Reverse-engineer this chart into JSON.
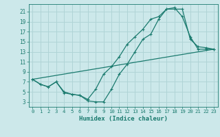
{
  "xlabel": "Humidex (Indice chaleur)",
  "bg_color": "#cce8ea",
  "grid_color": "#b0d4d6",
  "line_color": "#1a7a6e",
  "xlim": [
    -0.5,
    23.5
  ],
  "ylim": [
    2.0,
    22.5
  ],
  "xticks": [
    0,
    1,
    2,
    3,
    4,
    5,
    6,
    7,
    8,
    9,
    10,
    11,
    12,
    13,
    14,
    15,
    16,
    17,
    18,
    19,
    20,
    21,
    22,
    23
  ],
  "yticks": [
    3,
    5,
    7,
    9,
    11,
    13,
    15,
    17,
    19,
    21
  ],
  "line1_x": [
    0,
    1,
    2,
    3,
    4,
    5,
    6,
    7,
    8,
    9,
    10,
    11,
    12,
    13,
    14,
    15,
    16,
    17,
    18,
    19,
    20,
    21,
    22,
    23
  ],
  "line1_y": [
    7.5,
    6.5,
    6.0,
    7.0,
    4.8,
    4.5,
    4.3,
    3.2,
    3.0,
    3.0,
    5.5,
    8.5,
    10.5,
    13.0,
    15.5,
    16.5,
    19.5,
    21.5,
    21.5,
    21.5,
    15.5,
    14.0,
    13.8,
    13.5
  ],
  "line2_x": [
    0,
    1,
    2,
    3,
    4,
    5,
    6,
    7,
    8,
    9,
    10,
    11,
    12,
    13,
    14,
    15,
    16,
    17,
    18,
    19,
    20,
    21,
    22,
    23
  ],
  "line2_y": [
    7.5,
    6.5,
    6.0,
    7.0,
    5.0,
    4.5,
    4.3,
    3.5,
    5.5,
    8.5,
    10.0,
    12.0,
    14.5,
    16.0,
    17.5,
    19.5,
    20.0,
    21.5,
    21.8,
    20.0,
    16.0,
    13.5,
    13.5,
    13.5
  ],
  "line3_x": [
    0,
    23
  ],
  "line3_y": [
    7.5,
    13.5
  ]
}
